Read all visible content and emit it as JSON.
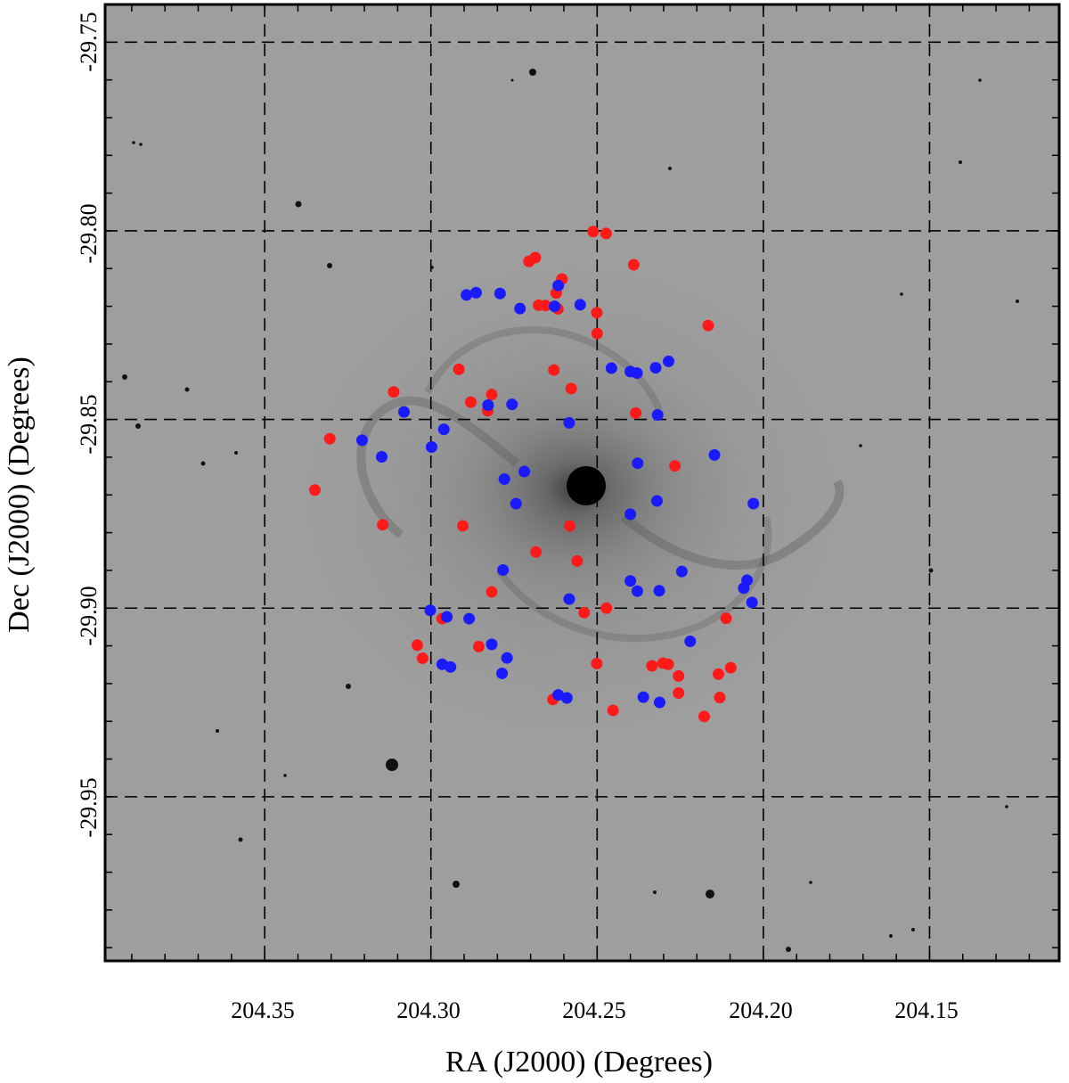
{
  "chart_data": {
    "type": "scatter",
    "xlabel": "RA (J2000) (Degrees)",
    "ylabel": "Dec (J2000) (Degrees)",
    "x_ticks": [
      "204.35",
      "204.30",
      "204.25",
      "204.20",
      "204.15"
    ],
    "y_ticks": [
      "-29.75",
      "-29.80",
      "-29.85",
      "-29.90",
      "-29.95"
    ],
    "x_tick_values": [
      204.35,
      204.3,
      204.25,
      204.2,
      204.15
    ],
    "y_tick_values": [
      -29.75,
      -29.8,
      -29.85,
      -29.9,
      -29.95
    ],
    "xlim": [
      204.398,
      204.111
    ],
    "ylim": [
      -29.9935,
      -29.74
    ],
    "x_inverted": true,
    "grid": "dashed",
    "background": "grayscale galaxy image",
    "series": [
      {
        "color": "#ff1a1a",
        "points": [
          [
            204.2512,
            -29.8002
          ],
          [
            204.2473,
            -29.8007
          ],
          [
            204.2705,
            -29.8081
          ],
          [
            204.2686,
            -29.8071
          ],
          [
            204.239,
            -29.809
          ],
          [
            204.2606,
            -29.8128
          ],
          [
            204.2623,
            -29.8165
          ],
          [
            204.2676,
            -29.8197
          ],
          [
            204.2655,
            -29.8198
          ],
          [
            204.2618,
            -29.8207
          ],
          [
            204.2501,
            -29.8217
          ],
          [
            204.2166,
            -29.8251
          ],
          [
            204.25,
            -29.8272
          ],
          [
            204.2916,
            -29.8367
          ],
          [
            204.263,
            -29.8369
          ],
          [
            204.2578,
            -29.8418
          ],
          [
            204.3112,
            -29.8427
          ],
          [
            204.2817,
            -29.8434
          ],
          [
            204.288,
            -29.8454
          ],
          [
            204.2829,
            -29.8477
          ],
          [
            204.2384,
            -29.8483
          ],
          [
            204.3304,
            -29.8551
          ],
          [
            204.2266,
            -29.8623
          ],
          [
            204.3349,
            -29.8687
          ],
          [
            204.3145,
            -29.8779
          ],
          [
            204.2904,
            -29.8782
          ],
          [
            204.2582,
            -29.8782
          ],
          [
            204.2684,
            -29.8851
          ],
          [
            204.256,
            -29.8875
          ],
          [
            204.2817,
            -29.8957
          ],
          [
            204.2472,
            -29.9
          ],
          [
            204.2539,
            -29.9012
          ],
          [
            204.2966,
            -29.9028
          ],
          [
            204.2112,
            -29.9027
          ],
          [
            204.3041,
            -29.9098
          ],
          [
            204.2856,
            -29.9102
          ],
          [
            204.3025,
            -29.9133
          ],
          [
            204.2501,
            -29.9147
          ],
          [
            204.2302,
            -29.9146
          ],
          [
            204.2335,
            -29.9153
          ],
          [
            204.2286,
            -29.9149
          ],
          [
            204.2098,
            -29.9158
          ],
          [
            204.2135,
            -29.9175
          ],
          [
            204.2255,
            -29.918
          ],
          [
            204.2255,
            -29.9225
          ],
          [
            204.2131,
            -29.9237
          ],
          [
            204.2633,
            -29.9242
          ],
          [
            204.2452,
            -29.9271
          ],
          [
            204.2178,
            -29.9287
          ]
        ]
      },
      {
        "color": "#1a1aff",
        "points": [
          [
            204.2617,
            -29.8145
          ],
          [
            204.2893,
            -29.817
          ],
          [
            204.2864,
            -29.8164
          ],
          [
            204.2792,
            -29.8166
          ],
          [
            204.2551,
            -29.8196
          ],
          [
            204.2628,
            -29.82
          ],
          [
            204.2732,
            -29.8206
          ],
          [
            204.2457,
            -29.8364
          ],
          [
            204.24,
            -29.8373
          ],
          [
            204.238,
            -29.8377
          ],
          [
            204.2324,
            -29.8363
          ],
          [
            204.2285,
            -29.8346
          ],
          [
            204.2828,
            -29.8462
          ],
          [
            204.2756,
            -29.846
          ],
          [
            204.3081,
            -29.848
          ],
          [
            204.2318,
            -29.8488
          ],
          [
            204.2584,
            -29.8509
          ],
          [
            204.2961,
            -29.8526
          ],
          [
            204.3207,
            -29.8555
          ],
          [
            204.2998,
            -29.8573
          ],
          [
            204.3148,
            -29.8599
          ],
          [
            204.2147,
            -29.8594
          ],
          [
            204.2378,
            -29.8616
          ],
          [
            204.2719,
            -29.8638
          ],
          [
            204.2779,
            -29.8658
          ],
          [
            204.232,
            -29.8716
          ],
          [
            204.2744,
            -29.8723
          ],
          [
            204.203,
            -29.8723
          ],
          [
            204.24,
            -29.8751
          ],
          [
            204.2783,
            -29.8899
          ],
          [
            204.2245,
            -29.8903
          ],
          [
            204.24,
            -29.8928
          ],
          [
            204.2049,
            -29.8926
          ],
          [
            204.2059,
            -29.8947
          ],
          [
            204.2379,
            -29.8955
          ],
          [
            204.2313,
            -29.8954
          ],
          [
            204.2584,
            -29.8976
          ],
          [
            204.2034,
            -29.8985
          ],
          [
            204.3002,
            -29.9006
          ],
          [
            204.2952,
            -29.9023
          ],
          [
            204.2885,
            -29.9028
          ],
          [
            204.2817,
            -29.9096
          ],
          [
            204.2771,
            -29.9132
          ],
          [
            204.2966,
            -29.9149
          ],
          [
            204.2941,
            -29.9156
          ],
          [
            204.2786,
            -29.9173
          ],
          [
            204.222,
            -29.9088
          ],
          [
            204.2617,
            -29.923
          ],
          [
            204.2591,
            -29.9238
          ],
          [
            204.2361,
            -29.9236
          ],
          [
            204.2312,
            -29.925
          ]
        ]
      }
    ]
  }
}
